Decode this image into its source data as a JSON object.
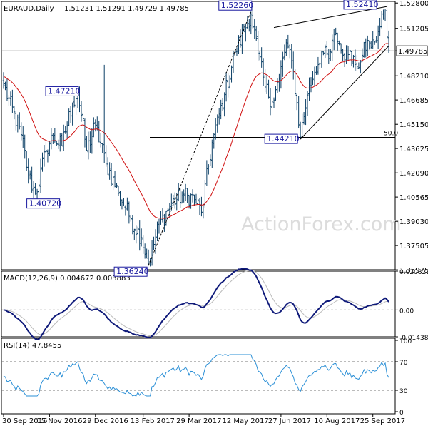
{
  "header": {
    "symbol": "EURAUD,Daily",
    "ohlc": "1.51231 1.51291 1.49729 1.49785"
  },
  "current_price_label": "1.49785",
  "watermark": "ActionForex.com",
  "macd_label": "MACD(12,26,9) 0.004672 0.003883",
  "rsi_label": "RSI(14) 47.8455",
  "colors": {
    "candle": "#0b3f66",
    "ma": "#d01010",
    "macd": "#0f1a7a",
    "signal": "#bbbbbb",
    "rsi": "#2a8fd6",
    "annotation": "#1a1aa0",
    "trendline": "#000000"
  },
  "chart_data": [
    {
      "type": "candlestick",
      "ylim": [
        1.3598,
        1.529
      ],
      "y_ticks": [
        "1.52800",
        "1.51205",
        "1.49785",
        "1.48210",
        "1.46685",
        "1.45150",
        "1.43625",
        "1.42090",
        "1.40565",
        "1.39030",
        "1.37505",
        "1.35975"
      ],
      "x_tick_labels": [
        "30 Sep 2016",
        "15 Nov 2016",
        "29 Dec 2016",
        "13 Feb 2017",
        "29 Mar 2017",
        "12 May 2017",
        "27 Jun 2017",
        "10 Aug 2017",
        "25 Sep 2017"
      ],
      "annotations": [
        {
          "label": "1.52260",
          "value": 1.5226
        },
        {
          "label": "1.52410",
          "value": 1.5241
        },
        {
          "label": "1.47210",
          "value": 1.4721
        },
        {
          "label": "1.40720",
          "value": 1.4072
        },
        {
          "label": "1.36240",
          "value": 1.3624
        },
        {
          "label": "1.44210",
          "value": 1.4421
        }
      ],
      "fib_label": "50.0",
      "fib_level": 1.4433,
      "close_line": 1.49785,
      "anchors": [
        {
          "i": 0,
          "v": 1.476
        },
        {
          "i": 10,
          "v": 1.445
        },
        {
          "i": 14,
          "v": 1.42
        },
        {
          "i": 18,
          "v": 1.4072
        },
        {
          "i": 24,
          "v": 1.435
        },
        {
          "i": 28,
          "v": 1.444
        },
        {
          "i": 33,
          "v": 1.438
        },
        {
          "i": 39,
          "v": 1.465
        },
        {
          "i": 42,
          "v": 1.4721
        },
        {
          "i": 47,
          "v": 1.435
        },
        {
          "i": 52,
          "v": 1.451
        },
        {
          "i": 58,
          "v": 1.427
        },
        {
          "i": 65,
          "v": 1.408
        },
        {
          "i": 72,
          "v": 1.392
        },
        {
          "i": 78,
          "v": 1.38
        },
        {
          "i": 82,
          "v": 1.364
        },
        {
          "i": 88,
          "v": 1.388
        },
        {
          "i": 95,
          "v": 1.402
        },
        {
          "i": 102,
          "v": 1.407
        },
        {
          "i": 108,
          "v": 1.405
        },
        {
          "i": 112,
          "v": 1.396
        },
        {
          "i": 118,
          "v": 1.44
        },
        {
          "i": 125,
          "v": 1.47
        },
        {
          "i": 131,
          "v": 1.497
        },
        {
          "i": 136,
          "v": 1.51
        },
        {
          "i": 140,
          "v": 1.521
        },
        {
          "i": 144,
          "v": 1.496
        },
        {
          "i": 148,
          "v": 1.475
        },
        {
          "i": 152,
          "v": 1.466
        },
        {
          "i": 156,
          "v": 1.48
        },
        {
          "i": 160,
          "v": 1.503
        },
        {
          "i": 164,
          "v": 1.485
        },
        {
          "i": 168,
          "v": 1.444
        },
        {
          "i": 172,
          "v": 1.47
        },
        {
          "i": 176,
          "v": 1.485
        },
        {
          "i": 180,
          "v": 1.497
        },
        {
          "i": 184,
          "v": 1.493
        },
        {
          "i": 188,
          "v": 1.509
        },
        {
          "i": 192,
          "v": 1.495
        },
        {
          "i": 196,
          "v": 1.498
        },
        {
          "i": 200,
          "v": 1.488
        },
        {
          "i": 204,
          "v": 1.503
        },
        {
          "i": 208,
          "v": 1.5
        },
        {
          "i": 212,
          "v": 1.51
        },
        {
          "i": 216,
          "v": 1.523
        },
        {
          "i": 218,
          "v": 1.499
        }
      ]
    },
    {
      "type": "line",
      "name_label": "MACD(12,26,9)",
      "ylim": [
        -0.01438,
        0.02082
      ],
      "y_ticks": [
        "0.020827",
        "0.00",
        "-0.014386"
      ]
    },
    {
      "type": "line",
      "name_label": "RSI(14)",
      "ylim": [
        0,
        100
      ],
      "y_ticks": [
        "100",
        "70",
        "30",
        "0"
      ],
      "levels": [
        70,
        30
      ]
    }
  ]
}
